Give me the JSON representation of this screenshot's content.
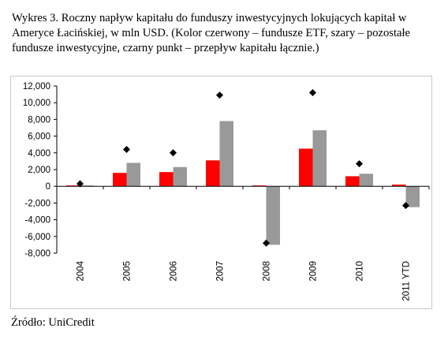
{
  "caption": "Wykres 3. Roczny napływ kapitału do funduszy inwestycyjnych lokujących kapitał w Ameryce Łacińskiej, w mln USD. (Kolor czerwony – fundusze ETF, szary – pozostałe fundusze inwestycyjne, czarny punkt – przepływ kapitału łącznie.)",
  "source": "Źródło: UniCredit",
  "colors": {
    "etf": "#ff0000",
    "other": "#999999",
    "total": "#000000",
    "axis": "#000000"
  },
  "chart_data": {
    "type": "bar",
    "categories": [
      "2004",
      "2005",
      "2006",
      "2007",
      "2008",
      "2009",
      "2010",
      "2011 YTD"
    ],
    "series": [
      {
        "values": [
          100,
          1600,
          1700,
          3100,
          100,
          4500,
          1200,
          200
        ]
      },
      {
        "values": [
          100,
          2800,
          2300,
          7800,
          -7000,
          6700,
          1500,
          -2500
        ]
      }
    ],
    "totals": [
      300,
      4400,
      4000,
      10900,
      -6800,
      11200,
      2700,
      -2300
    ],
    "ylim": [
      -8000,
      12000
    ],
    "yticks": [
      12000,
      10000,
      8000,
      6000,
      4000,
      2000,
      0,
      -2000,
      -4000,
      -6000,
      -8000
    ],
    "ytick_labels": [
      "12,000",
      "10,000",
      "8,000",
      "6,000",
      "4,000",
      "2,000",
      "0",
      "-2,000",
      "-4,000",
      "-6,000",
      "-8,000"
    ],
    "grid": false,
    "legend": "none"
  }
}
